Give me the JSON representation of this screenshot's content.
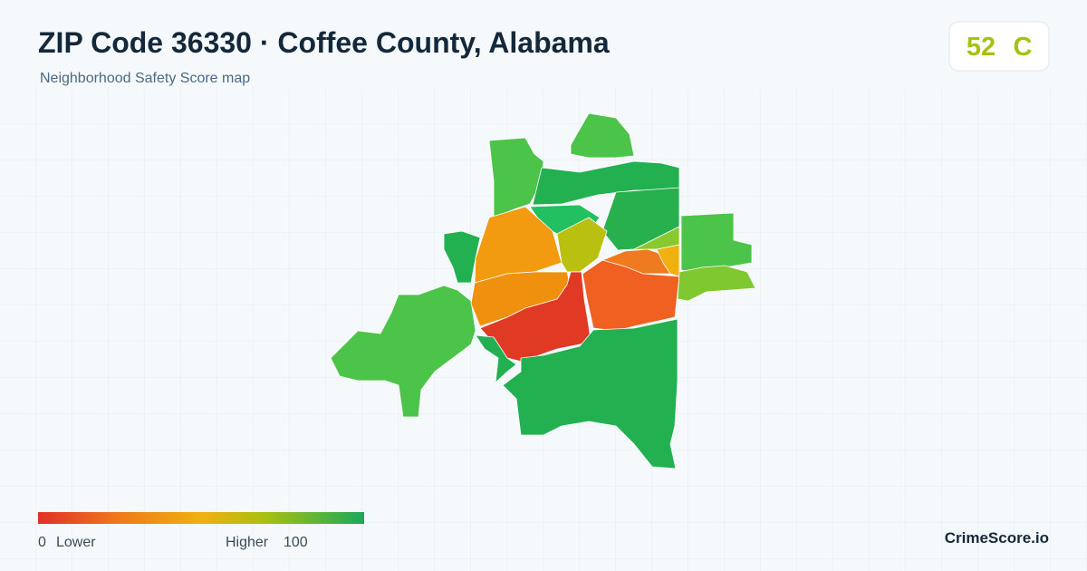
{
  "header": {
    "title": "ZIP Code 36330 · Coffee County, Alabama",
    "subtitle": "Neighborhood Safety Score map"
  },
  "score_badge": {
    "score": 52,
    "grade": "C"
  },
  "legend": {
    "min": 0,
    "min_label": "Lower",
    "max_label": "Higher",
    "max": 100
  },
  "brand": "CrimeScore.io"
}
